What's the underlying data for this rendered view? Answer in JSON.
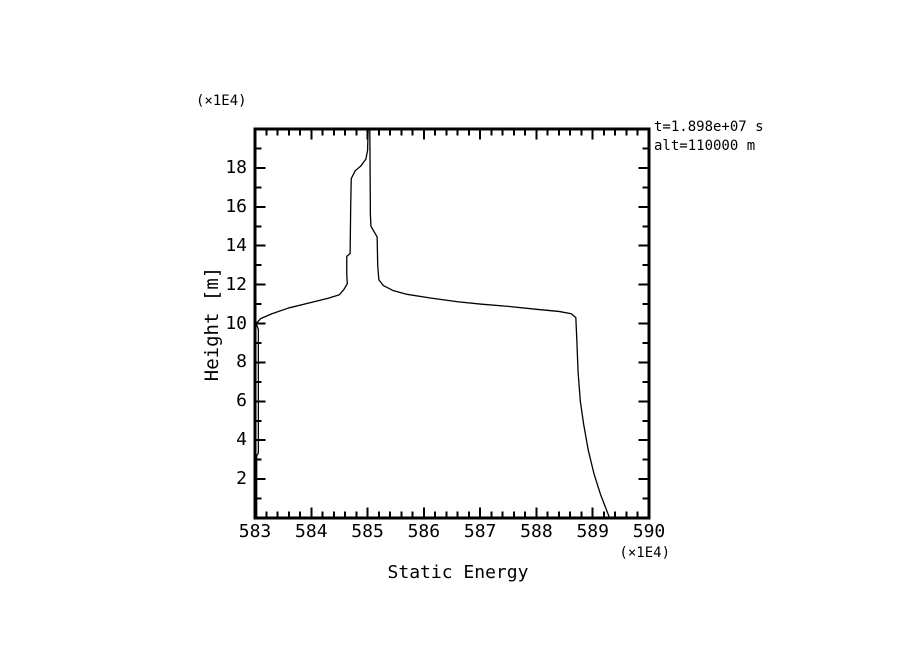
{
  "page": {
    "background_color": "#ffffff",
    "foreground_color": "#000000"
  },
  "chart_data": {
    "type": "line",
    "title": "",
    "xlabel": "Static Energy",
    "ylabel": "Height [m]",
    "x_unit_label": "(×1E4)",
    "y_unit_label": "(×1E4)",
    "xlim": [
      583,
      590
    ],
    "ylim": [
      0,
      20
    ],
    "xticks": [
      583,
      584,
      585,
      586,
      587,
      588,
      589,
      590
    ],
    "yticks": [
      2,
      4,
      6,
      8,
      10,
      12,
      14,
      16,
      18
    ],
    "x_minor_step": 0.2,
    "y_minor_step": 1,
    "grid": false,
    "frame": "box-with-inward-ticks",
    "axis_color": "#000000",
    "annotations": [
      "t=1.898e+07 s",
      "alt=110000 m"
    ],
    "series": [
      {
        "name": "static-energy-profile",
        "color": "#000000",
        "points": [
          [
            583.03,
            0.0
          ],
          [
            583.03,
            3.2
          ],
          [
            583.06,
            3.35
          ],
          [
            583.06,
            9.7
          ],
          [
            583.02,
            10.0
          ],
          [
            583.1,
            10.25
          ],
          [
            583.3,
            10.5
          ],
          [
            583.6,
            10.8
          ],
          [
            583.95,
            11.05
          ],
          [
            584.3,
            11.3
          ],
          [
            584.5,
            11.48
          ],
          [
            584.58,
            11.75
          ],
          [
            584.64,
            12.05
          ],
          [
            584.63,
            12.5
          ],
          [
            584.63,
            13.45
          ],
          [
            584.69,
            13.6
          ],
          [
            584.7,
            16.0
          ],
          [
            584.71,
            17.45
          ],
          [
            584.78,
            17.85
          ],
          [
            584.88,
            18.1
          ],
          [
            584.97,
            18.45
          ],
          [
            585.0,
            18.9
          ],
          [
            585.01,
            19.9
          ],
          [
            585.02,
            20.3
          ],
          [
            585.04,
            19.9
          ],
          [
            585.05,
            15.6
          ],
          [
            585.06,
            15.0
          ],
          [
            585.12,
            14.7
          ],
          [
            585.17,
            14.45
          ],
          [
            585.18,
            13.0
          ],
          [
            585.2,
            12.25
          ],
          [
            585.28,
            11.95
          ],
          [
            585.45,
            11.7
          ],
          [
            585.7,
            11.5
          ],
          [
            586.1,
            11.32
          ],
          [
            586.6,
            11.12
          ],
          [
            587.0,
            11.0
          ],
          [
            587.5,
            10.88
          ],
          [
            588.0,
            10.73
          ],
          [
            588.4,
            10.62
          ],
          [
            588.62,
            10.5
          ],
          [
            588.7,
            10.3
          ],
          [
            588.72,
            9.0
          ],
          [
            588.74,
            7.5
          ],
          [
            588.78,
            6.0
          ],
          [
            588.84,
            4.8
          ],
          [
            588.92,
            3.5
          ],
          [
            589.02,
            2.3
          ],
          [
            589.14,
            1.2
          ],
          [
            589.3,
            0.0
          ]
        ]
      }
    ]
  }
}
